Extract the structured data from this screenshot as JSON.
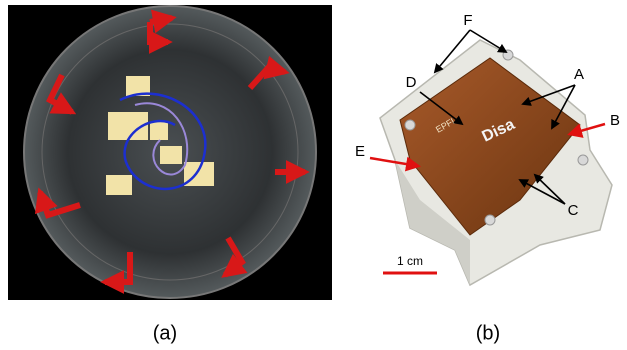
{
  "panels": [
    {
      "label": "(a)"
    },
    {
      "label": "(b)",
      "annotations": {
        "A": "A",
        "B": "B",
        "C": "C",
        "D": "D",
        "E": "E",
        "F": "F"
      },
      "scale_bar": "1 cm",
      "board_text": [
        "EPFL",
        "Disa"
      ]
    }
  ]
}
